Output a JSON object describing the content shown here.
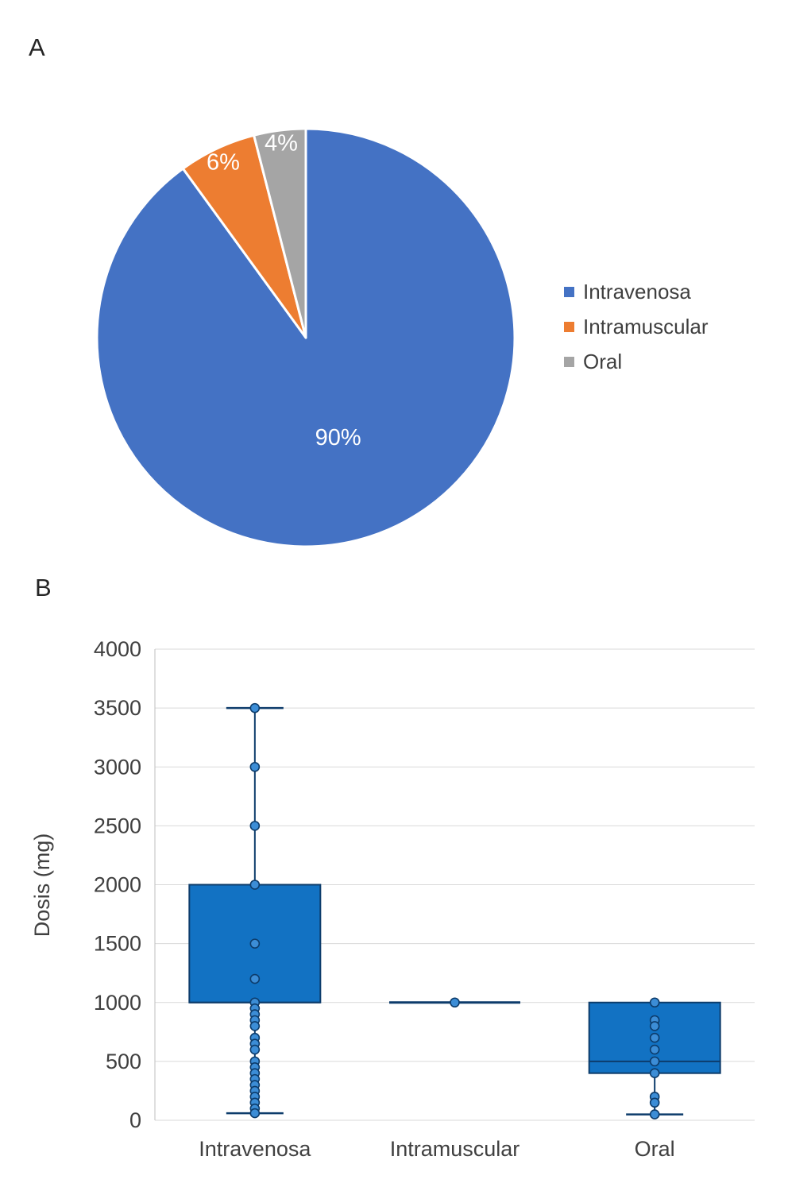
{
  "panelA": {
    "label": "A",
    "legend": [
      {
        "label": "Intravenosa",
        "color": "#4472C4"
      },
      {
        "label": "Intramuscular",
        "color": "#ED7D31"
      },
      {
        "label": "Oral",
        "color": "#A5A5A5"
      }
    ]
  },
  "panelB": {
    "label": "B"
  },
  "chart_data": [
    {
      "type": "pie",
      "labels": [
        "Intravenosa",
        "Intramuscular",
        "Oral"
      ],
      "values": [
        90,
        6,
        4
      ],
      "slice_labels": [
        "90%",
        "6%",
        "4%"
      ],
      "colors": [
        "#4472C4",
        "#ED7D31",
        "#A5A5A5"
      ],
      "label_color": "#ffffff",
      "label_radius_frac": [
        0.5,
        0.93,
        0.94
      ],
      "start_angle_deg": 0,
      "legend_position": "right"
    },
    {
      "type": "boxplot",
      "ylabel": "Dosis (mg)",
      "ylim": [
        0,
        4000
      ],
      "ytick_step": 500,
      "grid": true,
      "grid_color": "#D9D9D9",
      "axis_color": "#BFBFBF",
      "text_color": "#404040",
      "box_fill": "#1272C3",
      "box_stroke": "#0D3C6B",
      "point_fill": "#3C8DD6",
      "categories": [
        "Intravenosa",
        "Intramuscular",
        "Oral"
      ],
      "series": [
        {
          "category": "Intravenosa",
          "whisker_low": 60,
          "q1": 1000,
          "median": 1000,
          "q3": 2000,
          "whisker_high": 3500,
          "points": [
            3500,
            3000,
            2500,
            2000,
            1500,
            1200,
            1000,
            950,
            900,
            850,
            800,
            700,
            650,
            600,
            500,
            450,
            400,
            350,
            300,
            250,
            200,
            150,
            100,
            60
          ]
        },
        {
          "category": "Intramuscular",
          "whisker_low": 1000,
          "q1": 1000,
          "median": 1000,
          "q3": 1000,
          "whisker_high": 1000,
          "points": [
            1000
          ]
        },
        {
          "category": "Oral",
          "whisker_low": 50,
          "q1": 400,
          "median": 500,
          "q3": 1000,
          "whisker_high": 1000,
          "points": [
            1000,
            850,
            800,
            700,
            600,
            500,
            400,
            200,
            150,
            50
          ]
        }
      ]
    }
  ]
}
